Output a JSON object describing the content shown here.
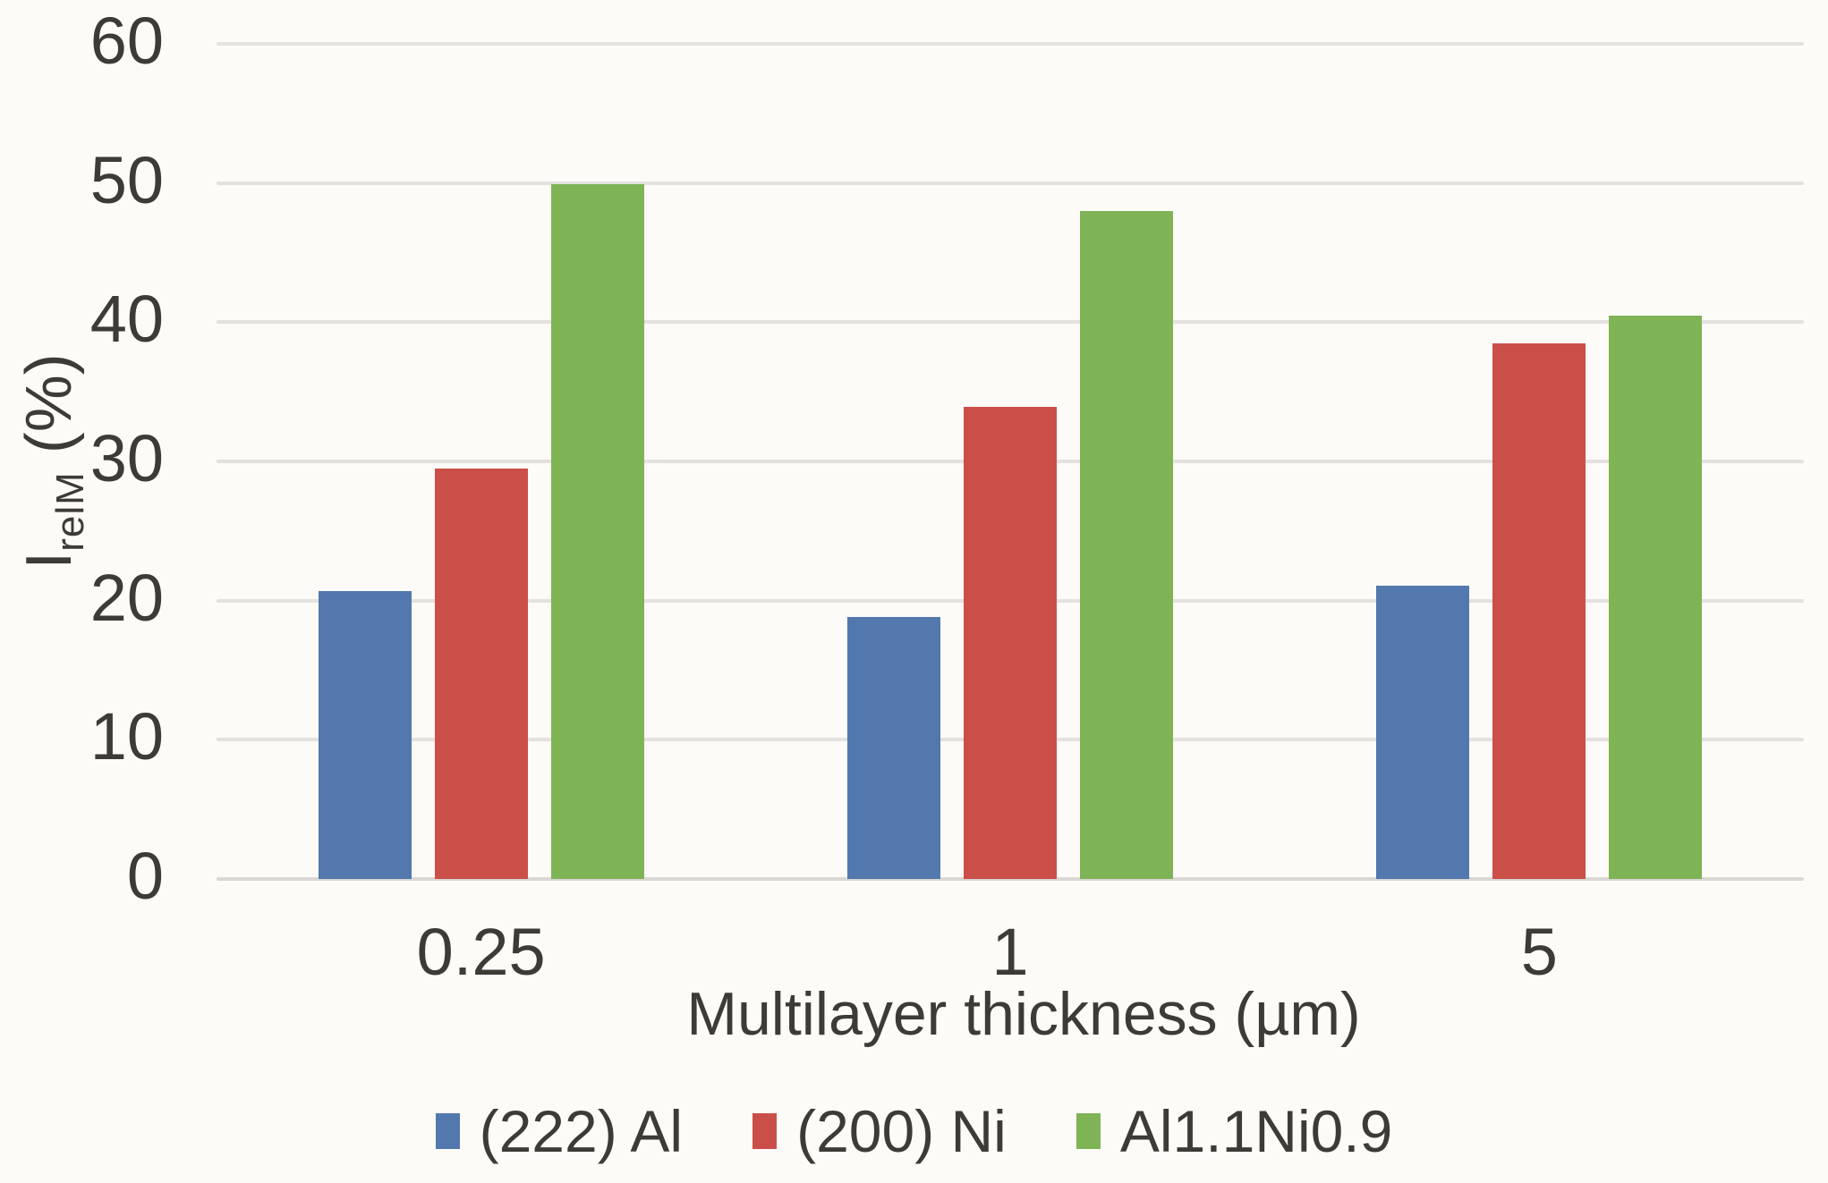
{
  "chart_data": {
    "type": "bar",
    "title": "",
    "categories": [
      "0.25",
      "1",
      "5"
    ],
    "series": [
      {
        "name": "(222) Al",
        "color": "#5278AE",
        "values": [
          20.7,
          18.8,
          21.1
        ]
      },
      {
        "name": "(200) Ni",
        "color": "#CB4F49",
        "values": [
          29.5,
          33.9,
          38.5
        ]
      },
      {
        "name": "Al1.1Ni0.9",
        "color": "#7EB455",
        "values": [
          49.9,
          48.0,
          40.5
        ]
      }
    ],
    "xlabel": "Multilayer thickness (µm)",
    "ylabel": "IrelM (%)",
    "ylabel_parts": {
      "main": "I",
      "subscript": "relM",
      "suffix": " (%)"
    },
    "ylim": [
      0,
      60
    ],
    "ytick_step": 10,
    "ytick_labels": [
      "0",
      "10",
      "20",
      "30",
      "40",
      "50",
      "60"
    ],
    "grid": true,
    "legend_position": "bottom"
  },
  "colors": {
    "background": "#FDFBF8",
    "gridline": "#E4E1DE",
    "axis_line": "#DAD7D4",
    "text": "#3E3A36"
  }
}
